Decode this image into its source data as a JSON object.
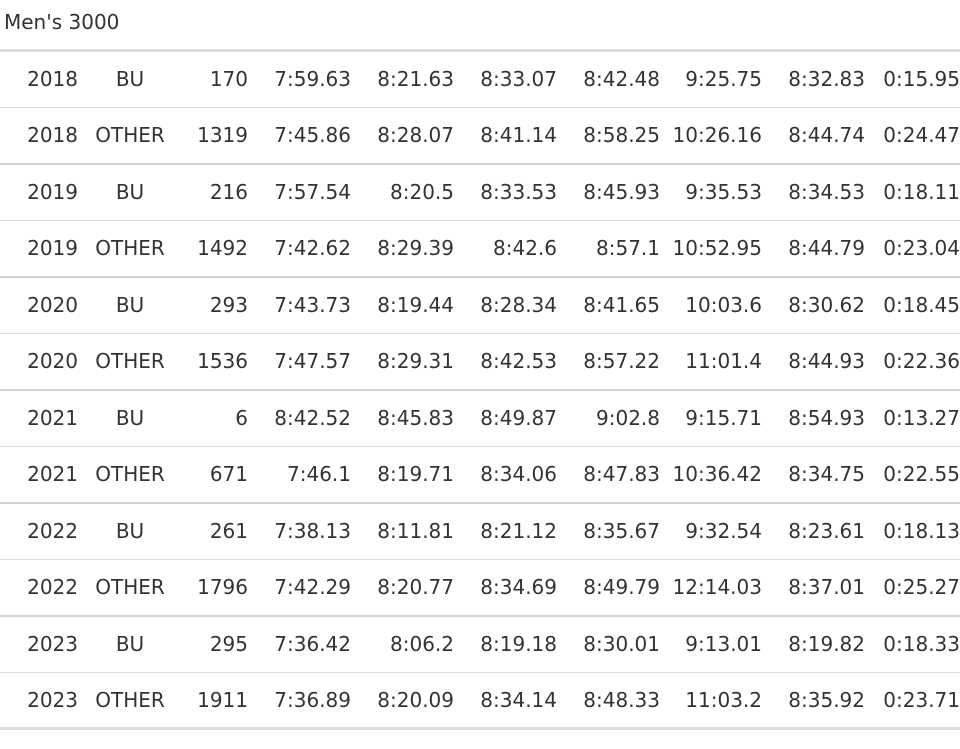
{
  "caption": "Men's 3000",
  "rows": [
    [
      "2018",
      "BU",
      "170",
      "7:59.63",
      "8:21.63",
      "8:33.07",
      "8:42.48",
      "9:25.75",
      "8:32.83",
      "0:15.95"
    ],
    [
      "2018",
      "OTHER",
      "1319",
      "7:45.86",
      "8:28.07",
      "8:41.14",
      "8:58.25",
      "10:26.16",
      "8:44.74",
      "0:24.47"
    ],
    [
      "2019",
      "BU",
      "216",
      "7:57.54",
      "8:20.5",
      "8:33.53",
      "8:45.93",
      "9:35.53",
      "8:34.53",
      "0:18.11"
    ],
    [
      "2019",
      "OTHER",
      "1492",
      "7:42.62",
      "8:29.39",
      "8:42.6",
      "8:57.1",
      "10:52.95",
      "8:44.79",
      "0:23.04"
    ],
    [
      "2020",
      "BU",
      "293",
      "7:43.73",
      "8:19.44",
      "8:28.34",
      "8:41.65",
      "10:03.6",
      "8:30.62",
      "0:18.45"
    ],
    [
      "2020",
      "OTHER",
      "1536",
      "7:47.57",
      "8:29.31",
      "8:42.53",
      "8:57.22",
      "11:01.4",
      "8:44.93",
      "0:22.36"
    ],
    [
      "2021",
      "BU",
      "6",
      "8:42.52",
      "8:45.83",
      "8:49.87",
      "9:02.8",
      "9:15.71",
      "8:54.93",
      "0:13.27"
    ],
    [
      "2021",
      "OTHER",
      "671",
      "7:46.1",
      "8:19.71",
      "8:34.06",
      "8:47.83",
      "10:36.42",
      "8:34.75",
      "0:22.55"
    ],
    [
      "2022",
      "BU",
      "261",
      "7:38.13",
      "8:11.81",
      "8:21.12",
      "8:35.67",
      "9:32.54",
      "8:23.61",
      "0:18.13"
    ],
    [
      "2022",
      "OTHER",
      "1796",
      "7:42.29",
      "8:20.77",
      "8:34.69",
      "8:49.79",
      "12:14.03",
      "8:37.01",
      "0:25.27"
    ],
    [
      "2023",
      "BU",
      "295",
      "7:36.42",
      "8:06.2",
      "8:19.18",
      "8:30.01",
      "9:13.01",
      "8:19.82",
      "0:18.33"
    ],
    [
      "2023",
      "OTHER",
      "1911",
      "7:36.89",
      "8:20.09",
      "8:34.14",
      "8:48.33",
      "11:03.2",
      "8:35.92",
      "0:23.71"
    ]
  ]
}
